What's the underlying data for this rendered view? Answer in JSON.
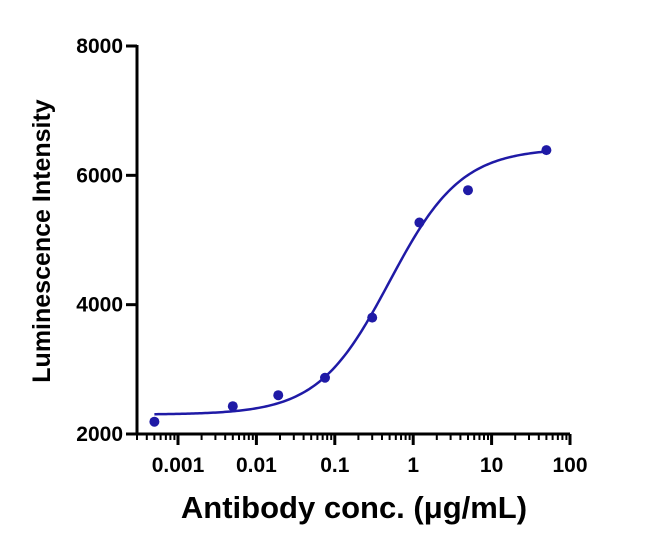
{
  "chart_data": {
    "type": "scatter",
    "xlabel": "Antibody conc. (μg/mL)",
    "ylabel": "Luminescence Intensity",
    "x_scale": "log",
    "xlim": [
      0.0003,
      100
    ],
    "ylim": [
      2000,
      8000
    ],
    "x_ticks": [
      0.001,
      0.01,
      0.1,
      1,
      10,
      100
    ],
    "x_tick_labels": [
      "0.001",
      "0.01",
      "0.1",
      "1",
      "10",
      "100"
    ],
    "y_ticks": [
      2000,
      4000,
      6000,
      8000
    ],
    "y_tick_labels": [
      "2000",
      "4000",
      "6000",
      "8000"
    ],
    "grid": false,
    "color": "#1f1aa6",
    "series": [
      {
        "x": [
          0.0005,
          0.005,
          0.019,
          0.075,
          0.3,
          1.2,
          5,
          50
        ],
        "y": [
          2190,
          2430,
          2600,
          2870,
          3800,
          5270,
          5770,
          6390
        ]
      }
    ],
    "fit": {
      "type": "4PL",
      "bottom": 2300,
      "top": 6420,
      "ec50": 0.5,
      "hill": 0.95
    }
  }
}
